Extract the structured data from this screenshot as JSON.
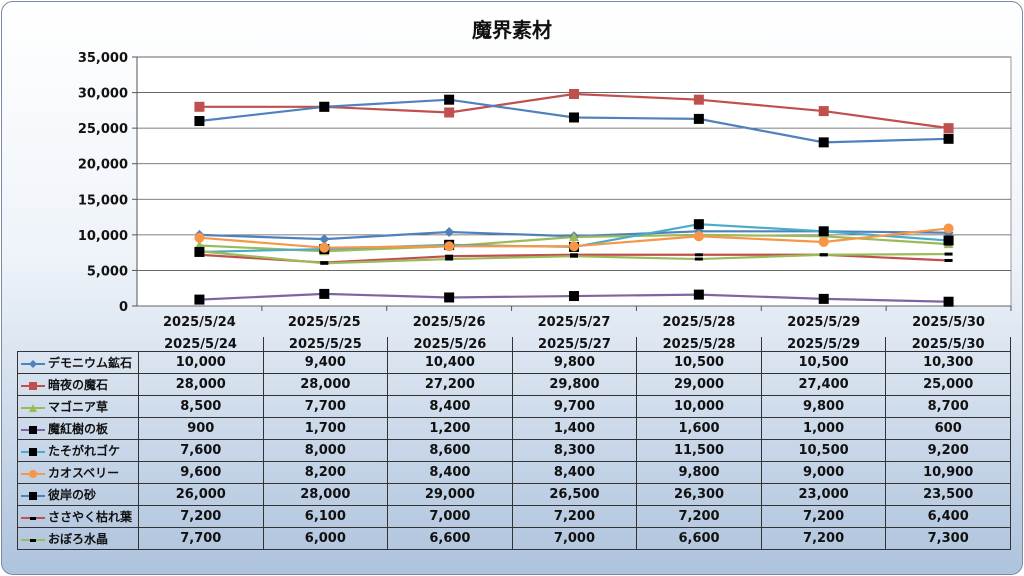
{
  "chart_data": {
    "type": "line",
    "title": "魔界素材",
    "categories": [
      "2025/5/24",
      "2025/5/25",
      "2025/5/26",
      "2025/5/27",
      "2025/5/28",
      "2025/5/29",
      "2025/5/30"
    ],
    "ylim": [
      0,
      35000
    ],
    "yticks": [
      "0",
      "5,000",
      "10,000",
      "15,000",
      "20,000",
      "25,000",
      "30,000",
      "35,000"
    ],
    "grid": true,
    "legend": "data-table",
    "series": [
      {
        "name": "デモニウム鉱石",
        "color": "#4f81bd",
        "marker": "diamond",
        "values": [
          10000,
          9400,
          10400,
          9800,
          10500,
          10500,
          10300
        ],
        "labels": [
          "10,000",
          "9,400",
          "10,400",
          "9,800",
          "10,500",
          "10,500",
          "10,300"
        ]
      },
      {
        "name": "暗夜の魔石",
        "color": "#c0504d",
        "marker": "square",
        "values": [
          28000,
          28000,
          27200,
          29800,
          29000,
          27400,
          25000
        ],
        "labels": [
          "28,000",
          "28,000",
          "27,200",
          "29,800",
          "29,000",
          "27,400",
          "25,000"
        ]
      },
      {
        "name": "マゴニア草",
        "color": "#9bbb59",
        "marker": "triangle",
        "values": [
          8500,
          7700,
          8400,
          9700,
          10000,
          9800,
          8700
        ],
        "labels": [
          "8,500",
          "7,700",
          "8,400",
          "9,700",
          "10,000",
          "9,800",
          "8,700"
        ]
      },
      {
        "name": "魔紅樹の板",
        "color": "#8064a2",
        "marker": "blacksquare",
        "values": [
          900,
          1700,
          1200,
          1400,
          1600,
          1000,
          600
        ],
        "labels": [
          "900",
          "1,700",
          "1,200",
          "1,400",
          "1,600",
          "1,000",
          "600"
        ]
      },
      {
        "name": "たそがれゴケ",
        "color": "#4bacc6",
        "marker": "blacksquare",
        "values": [
          7600,
          8000,
          8600,
          8300,
          11500,
          10500,
          9200
        ],
        "labels": [
          "7,600",
          "8,000",
          "8,600",
          "8,300",
          "11,500",
          "10,500",
          "9,200"
        ]
      },
      {
        "name": "カオスベリー",
        "color": "#f79646",
        "marker": "circle",
        "values": [
          9600,
          8200,
          8400,
          8400,
          9800,
          9000,
          10900
        ],
        "labels": [
          "9,600",
          "8,200",
          "8,400",
          "8,400",
          "9,800",
          "9,000",
          "10,900"
        ]
      },
      {
        "name": "彼岸の砂",
        "color": "#4f81bd",
        "marker": "blacksquare",
        "values": [
          26000,
          28000,
          29000,
          26500,
          26300,
          23000,
          23500
        ],
        "labels": [
          "26,000",
          "28,000",
          "29,000",
          "26,500",
          "26,300",
          "23,000",
          "23,500"
        ]
      },
      {
        "name": "ささやく枯れ葉",
        "color": "#c0504d",
        "marker": "dash",
        "values": [
          7200,
          6100,
          7000,
          7200,
          7200,
          7200,
          6400
        ],
        "labels": [
          "7,200",
          "6,100",
          "7,000",
          "7,200",
          "7,200",
          "7,200",
          "6,400"
        ]
      },
      {
        "name": "おぼろ水晶",
        "color": "#9bbb59",
        "marker": "dash",
        "values": [
          7700,
          6000,
          6600,
          7000,
          6600,
          7200,
          7300
        ],
        "labels": [
          "7,700",
          "6,000",
          "6,600",
          "7,000",
          "6,600",
          "7,200",
          "7,300"
        ]
      }
    ]
  }
}
